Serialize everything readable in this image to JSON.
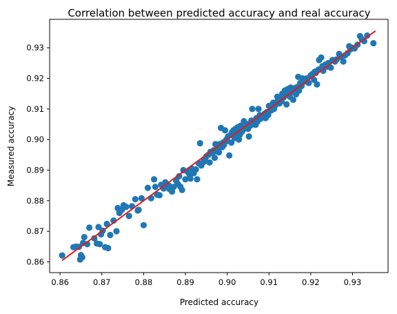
{
  "chart_data": {
    "type": "scatter",
    "title": "Correlation between predicted accuracy and real accuracy",
    "xlabel": "Predicted accuracy",
    "ylabel": "Measured accuracy",
    "xlim": [
      0.8575,
      0.9385
    ],
    "ylim": [
      0.8565,
      0.9393
    ],
    "xticks": [
      0.86,
      0.87,
      0.88,
      0.89,
      0.9,
      0.91,
      0.92,
      0.93
    ],
    "yticks": [
      0.86,
      0.87,
      0.88,
      0.89,
      0.9,
      0.91,
      0.92,
      0.93
    ],
    "xtick_labels": [
      "0.86",
      "0.87",
      "0.88",
      "0.89",
      "0.90",
      "0.91",
      "0.92",
      "0.93"
    ],
    "ytick_labels": [
      "0.86",
      "0.87",
      "0.88",
      "0.89",
      "0.90",
      "0.91",
      "0.92",
      "0.93"
    ],
    "grid": false,
    "series": [
      {
        "kind": "points",
        "color": "#1f77b4",
        "points": [
          [
            0.8605,
            0.8621
          ],
          [
            0.8632,
            0.8648
          ],
          [
            0.8638,
            0.865
          ],
          [
            0.8645,
            0.8649
          ],
          [
            0.8648,
            0.8608
          ],
          [
            0.865,
            0.8622
          ],
          [
            0.8653,
            0.8615
          ],
          [
            0.8655,
            0.8662
          ],
          [
            0.8658,
            0.8681
          ],
          [
            0.8665,
            0.8658
          ],
          [
            0.867,
            0.8712
          ],
          [
            0.8682,
            0.8677
          ],
          [
            0.8688,
            0.866
          ],
          [
            0.8692,
            0.8714
          ],
          [
            0.8695,
            0.8658
          ],
          [
            0.8698,
            0.869
          ],
          [
            0.8702,
            0.8702
          ],
          [
            0.8708,
            0.8648
          ],
          [
            0.8712,
            0.8724
          ],
          [
            0.8715,
            0.8645
          ],
          [
            0.872,
            0.8688
          ],
          [
            0.8728,
            0.8735
          ],
          [
            0.8735,
            0.87
          ],
          [
            0.8738,
            0.8776
          ],
          [
            0.8742,
            0.876
          ],
          [
            0.8748,
            0.877
          ],
          [
            0.8752,
            0.8785
          ],
          [
            0.8758,
            0.878
          ],
          [
            0.8765,
            0.875
          ],
          [
            0.8772,
            0.8782
          ],
          [
            0.878,
            0.8805
          ],
          [
            0.8786,
            0.8768
          ],
          [
            0.8788,
            0.877
          ],
          [
            0.8795,
            0.8808
          ],
          [
            0.88,
            0.872
          ],
          [
            0.881,
            0.8842
          ],
          [
            0.8818,
            0.8808
          ],
          [
            0.8825,
            0.887
          ],
          [
            0.8828,
            0.8845
          ],
          [
            0.8832,
            0.882
          ],
          [
            0.8838,
            0.8818
          ],
          [
            0.8842,
            0.8852
          ],
          [
            0.8848,
            0.884
          ],
          [
            0.8852,
            0.886
          ],
          [
            0.8858,
            0.8848
          ],
          [
            0.886,
            0.885
          ],
          [
            0.8862,
            0.8838
          ],
          [
            0.8868,
            0.883
          ],
          [
            0.8872,
            0.8845
          ],
          [
            0.8878,
            0.8865
          ],
          [
            0.8882,
            0.8855
          ],
          [
            0.8885,
            0.888
          ],
          [
            0.8888,
            0.8846
          ],
          [
            0.8892,
            0.8835
          ],
          [
            0.8895,
            0.89
          ],
          [
            0.89,
            0.887
          ],
          [
            0.8905,
            0.8895
          ],
          [
            0.891,
            0.8885
          ],
          [
            0.8912,
            0.8872
          ],
          [
            0.8915,
            0.8905
          ],
          [
            0.892,
            0.889
          ],
          [
            0.8925,
            0.8902
          ],
          [
            0.8928,
            0.887
          ],
          [
            0.8932,
            0.8922
          ],
          [
            0.8935,
            0.8988
          ],
          [
            0.8938,
            0.8915
          ],
          [
            0.8942,
            0.8925
          ],
          [
            0.8945,
            0.8935
          ],
          [
            0.8948,
            0.893
          ],
          [
            0.895,
            0.8945
          ],
          [
            0.8955,
            0.895
          ],
          [
            0.8958,
            0.8925
          ],
          [
            0.896,
            0.896
          ],
          [
            0.8962,
            0.8958
          ],
          [
            0.8965,
            0.8955
          ],
          [
            0.8968,
            0.8965
          ],
          [
            0.897,
            0.894
          ],
          [
            0.8972,
            0.8985
          ],
          [
            0.8975,
            0.8962
          ],
          [
            0.8978,
            0.8972
          ],
          [
            0.898,
            0.8958
          ],
          [
            0.8982,
            0.8985
          ],
          [
            0.8985,
            0.9038
          ],
          [
            0.8988,
            0.8975
          ],
          [
            0.899,
            0.899
          ],
          [
            0.8992,
            0.8982
          ],
          [
            0.8995,
            0.903
          ],
          [
            0.8998,
            0.9
          ],
          [
            0.9,
            0.8995
          ],
          [
            0.9002,
            0.901
          ],
          [
            0.9005,
            0.8948
          ],
          [
            0.9008,
            0.9015
          ],
          [
            0.901,
            0.899
          ],
          [
            0.9012,
            0.9025
          ],
          [
            0.9015,
            0.903
          ],
          [
            0.9018,
            0.9005
          ],
          [
            0.902,
            0.9035
          ],
          [
            0.9022,
            0.902
          ],
          [
            0.9025,
            0.904
          ],
          [
            0.9028,
            0.9
          ],
          [
            0.903,
            0.9015
          ],
          [
            0.9032,
            0.9045
          ],
          [
            0.9035,
            0.9025
          ],
          [
            0.9038,
            0.9032
          ],
          [
            0.904,
            0.906
          ],
          [
            0.9042,
            0.904
          ],
          [
            0.9045,
            0.9038
          ],
          [
            0.9048,
            0.905
          ],
          [
            0.905,
            0.9035
          ],
          [
            0.9052,
            0.901
          ],
          [
            0.9055,
            0.9045
          ],
          [
            0.9058,
            0.9062
          ],
          [
            0.906,
            0.91
          ],
          [
            0.9062,
            0.905
          ],
          [
            0.9065,
            0.906
          ],
          [
            0.9068,
            0.9048
          ],
          [
            0.907,
            0.907
          ],
          [
            0.9072,
            0.9058
          ],
          [
            0.9075,
            0.91
          ],
          [
            0.9078,
            0.908
          ],
          [
            0.908,
            0.9068
          ],
          [
            0.9085,
            0.9075
          ],
          [
            0.909,
            0.9085
          ],
          [
            0.9092,
            0.907
          ],
          [
            0.9095,
            0.909
          ],
          [
            0.9098,
            0.908
          ],
          [
            0.91,
            0.911
          ],
          [
            0.9105,
            0.9095
          ],
          [
            0.911,
            0.912
          ],
          [
            0.9112,
            0.91
          ],
          [
            0.9115,
            0.9112
          ],
          [
            0.9118,
            0.9122
          ],
          [
            0.912,
            0.914
          ],
          [
            0.9122,
            0.913
          ],
          [
            0.9125,
            0.9118
          ],
          [
            0.9128,
            0.9135
          ],
          [
            0.913,
            0.9125
          ],
          [
            0.9132,
            0.915
          ],
          [
            0.9135,
            0.9138
          ],
          [
            0.9138,
            0.916
          ],
          [
            0.914,
            0.9145
          ],
          [
            0.9142,
            0.9115
          ],
          [
            0.9145,
            0.9165
          ],
          [
            0.9148,
            0.915
          ],
          [
            0.915,
            0.914
          ],
          [
            0.9152,
            0.917
          ],
          [
            0.9155,
            0.9158
          ],
          [
            0.9158,
            0.913
          ],
          [
            0.916,
            0.9155
          ],
          [
            0.9162,
            0.9168
          ],
          [
            0.9165,
            0.9148
          ],
          [
            0.9168,
            0.9172
          ],
          [
            0.917,
            0.9205
          ],
          [
            0.9172,
            0.916
          ],
          [
            0.9175,
            0.9185
          ],
          [
            0.9178,
            0.9175
          ],
          [
            0.918,
            0.92
          ],
          [
            0.9185,
            0.919
          ],
          [
            0.919,
            0.92
          ],
          [
            0.9195,
            0.9185
          ],
          [
            0.92,
            0.921
          ],
          [
            0.9205,
            0.9215
          ],
          [
            0.9208,
            0.9195
          ],
          [
            0.921,
            0.9222
          ],
          [
            0.9212,
            0.9218
          ],
          [
            0.9215,
            0.918
          ],
          [
            0.9218,
            0.9228
          ],
          [
            0.922,
            0.926
          ],
          [
            0.9222,
            0.923
          ],
          [
            0.9225,
            0.9268
          ],
          [
            0.9228,
            0.924
          ],
          [
            0.923,
            0.9225
          ],
          [
            0.9235,
            0.9245
          ],
          [
            0.9238,
            0.9238
          ],
          [
            0.9242,
            0.925
          ],
          [
            0.9248,
            0.9235
          ],
          [
            0.9252,
            0.926
          ],
          [
            0.9258,
            0.9255
          ],
          [
            0.9262,
            0.9262
          ],
          [
            0.9268,
            0.928
          ],
          [
            0.9272,
            0.927
          ],
          [
            0.9278,
            0.9255
          ],
          [
            0.9282,
            0.9275
          ],
          [
            0.9288,
            0.9282
          ],
          [
            0.9292,
            0.9305
          ],
          [
            0.9295,
            0.9295
          ],
          [
            0.93,
            0.93
          ],
          [
            0.9305,
            0.9298
          ],
          [
            0.9312,
            0.931
          ],
          [
            0.9318,
            0.9338
          ],
          [
            0.9322,
            0.9328
          ],
          [
            0.9328,
            0.9322
          ],
          [
            0.9335,
            0.934
          ],
          [
            0.935,
            0.9315
          ]
        ]
      },
      {
        "kind": "line",
        "color": "#e31a1c",
        "points": [
          [
            0.8605,
            0.8605
          ],
          [
            0.9355,
            0.9355
          ]
        ]
      }
    ]
  }
}
